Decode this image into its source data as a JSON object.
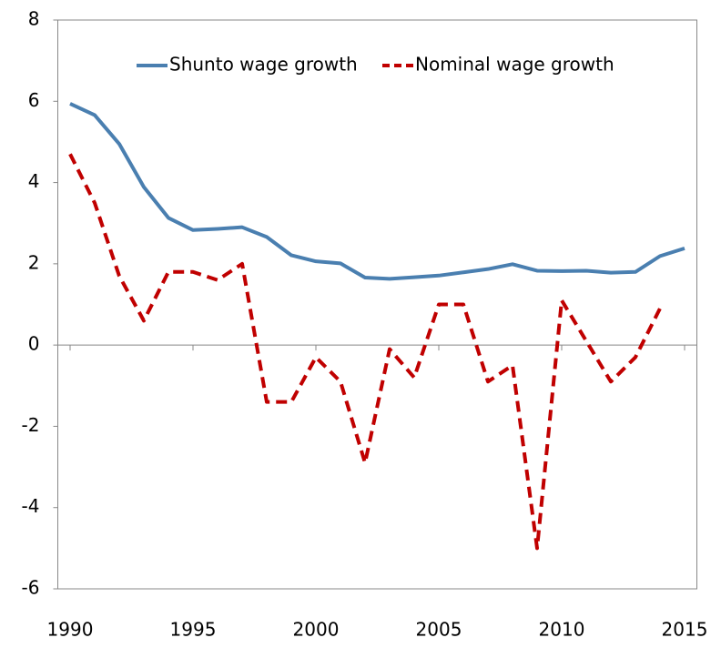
{
  "chart_data": {
    "type": "line",
    "x": [
      1990,
      1991,
      1992,
      1993,
      1994,
      1995,
      1996,
      1997,
      1998,
      1999,
      2000,
      2001,
      2002,
      2003,
      2004,
      2005,
      2006,
      2007,
      2008,
      2009,
      2010,
      2011,
      2012,
      2013,
      2014,
      2015
    ],
    "series": [
      {
        "name": "Shunto wage growth",
        "color": "#4a7fb0",
        "dash": "solid",
        "values": [
          5.94,
          5.66,
          4.95,
          3.89,
          3.13,
          2.83,
          2.86,
          2.9,
          2.66,
          2.21,
          2.06,
          2.01,
          1.66,
          1.63,
          1.67,
          1.71,
          1.79,
          1.87,
          1.99,
          1.83,
          1.82,
          1.83,
          1.78,
          1.8,
          2.19,
          2.38
        ]
      },
      {
        "name": "Nominal wage growth",
        "color": "#c00000",
        "dash": "dashed",
        "values": [
          4.7,
          3.5,
          1.7,
          0.6,
          1.8,
          1.8,
          1.6,
          2.0,
          -1.4,
          -1.4,
          -0.3,
          -0.9,
          -2.9,
          -0.1,
          -0.8,
          1.0,
          1.0,
          -0.9,
          -0.5,
          -5.0,
          1.1,
          0.1,
          -0.9,
          -0.3,
          0.9,
          null
        ]
      }
    ],
    "xlim": [
      1989.5,
      2015.5
    ],
    "xticks": [
      1990,
      1995,
      2000,
      2005,
      2010,
      2015
    ],
    "ylim": [
      -6,
      8
    ],
    "yticks": [
      -6,
      -4,
      -2,
      0,
      2,
      4,
      6,
      8
    ],
    "legend": "top"
  }
}
